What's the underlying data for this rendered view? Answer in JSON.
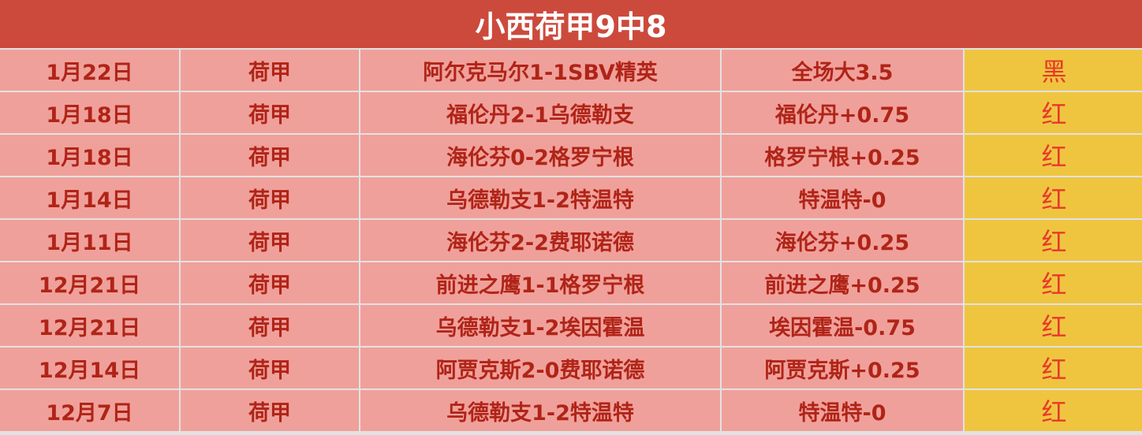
{
  "title": "小西荷甲9中8",
  "colors": {
    "header": "#cc4a3c",
    "cell": "#f0a09a",
    "text": "#b02418",
    "result_bg": "#efc540",
    "result_text": "#e8392a"
  },
  "rows": [
    {
      "date": "1月22日",
      "league": "荷甲",
      "match": "阿尔克马尔1-1SBV精英",
      "pick": "全场大3.5",
      "result": "黑"
    },
    {
      "date": "1月18日",
      "league": "荷甲",
      "match": "福伦丹2-1乌德勒支",
      "pick": "福伦丹+0.75",
      "result": "红"
    },
    {
      "date": "1月18日",
      "league": "荷甲",
      "match": "海伦芬0-2格罗宁根",
      "pick": "格罗宁根+0.25",
      "result": "红"
    },
    {
      "date": "1月14日",
      "league": "荷甲",
      "match": "乌德勒支1-2特温特",
      "pick": "特温特-0",
      "result": "红"
    },
    {
      "date": "1月11日",
      "league": "荷甲",
      "match": "海伦芬2-2费耶诺德",
      "pick": "海伦芬+0.25",
      "result": "红"
    },
    {
      "date": "12月21日",
      "league": "荷甲",
      "match": "前进之鹰1-1格罗宁根",
      "pick": "前进之鹰+0.25",
      "result": "红"
    },
    {
      "date": "12月21日",
      "league": "荷甲",
      "match": "乌德勒支1-2埃因霍温",
      "pick": "埃因霍温-0.75",
      "result": "红"
    },
    {
      "date": "12月14日",
      "league": "荷甲",
      "match": "阿贾克斯2-0费耶诺德",
      "pick": "阿贾克斯+0.25",
      "result": "红"
    },
    {
      "date": "12月7日",
      "league": "荷甲",
      "match": "乌德勒支1-2特温特",
      "pick": "特温特-0",
      "result": "红"
    }
  ]
}
